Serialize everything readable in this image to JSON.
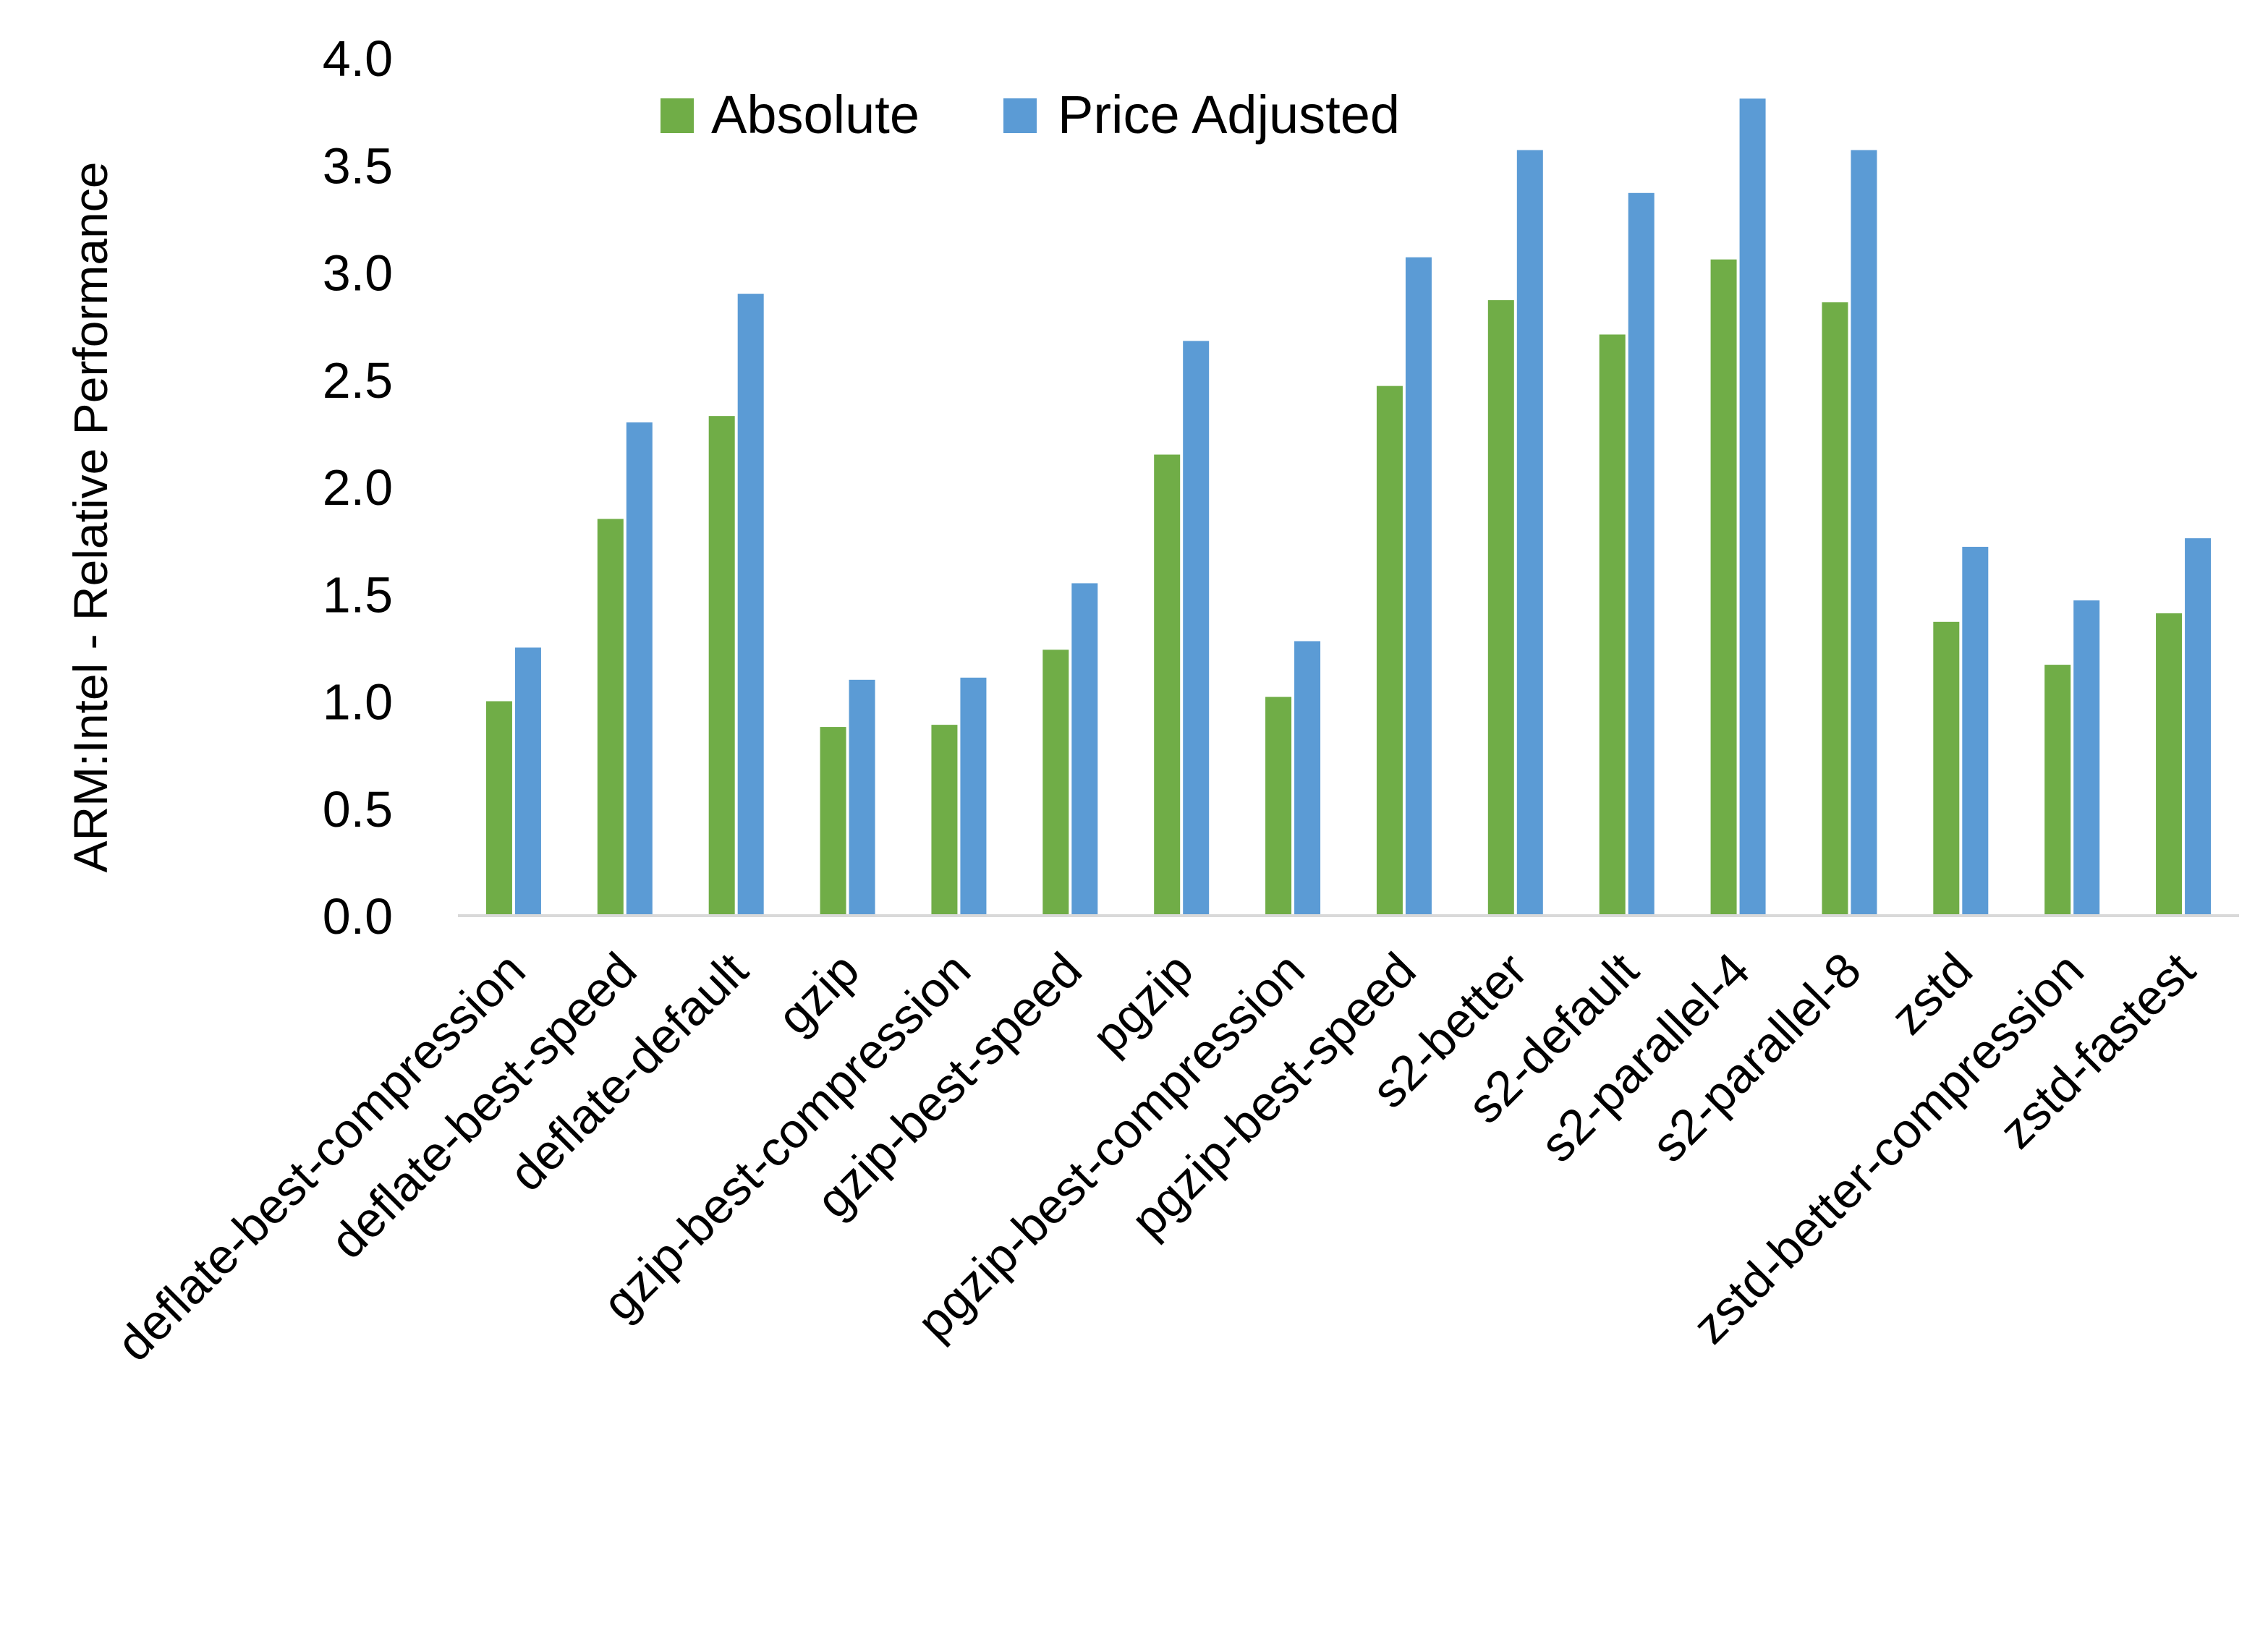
{
  "chart_data": {
    "type": "bar",
    "title": "",
    "xlabel": "",
    "ylabel": "ARM:Intel - Relative Performance",
    "ylim": [
      0,
      4.0
    ],
    "yticks": [
      "0.0",
      "0.5",
      "1.0",
      "1.5",
      "2.0",
      "2.5",
      "3.0",
      "3.5",
      "4.0"
    ],
    "grid": false,
    "legend_position": "top",
    "categories": [
      "deflate-best-compression",
      "deflate-best-speed",
      "deflate-default",
      "gzip",
      "gzip-best-compression",
      "gzip-best-speed",
      "pgzip",
      "pgzip-best-compression",
      "pgzip-best-speed",
      "s2-better",
      "s2-default",
      "s2-parallel-4",
      "s2-parallel-8",
      "zstd",
      "zstd-better-compression",
      "zstd-fastest"
    ],
    "series": [
      {
        "name": "Absolute",
        "color": "#70AD47",
        "values": [
          1.0,
          1.85,
          2.33,
          0.88,
          0.89,
          1.24,
          2.15,
          1.02,
          2.47,
          2.87,
          2.71,
          3.06,
          2.86,
          1.37,
          1.17,
          1.41
        ]
      },
      {
        "name": "Price Adjusted",
        "color": "#5B9BD5",
        "values": [
          1.25,
          2.3,
          2.9,
          1.1,
          1.11,
          1.55,
          2.68,
          1.28,
          3.07,
          3.57,
          3.37,
          3.81,
          3.57,
          1.72,
          1.47,
          1.76
        ]
      }
    ]
  }
}
